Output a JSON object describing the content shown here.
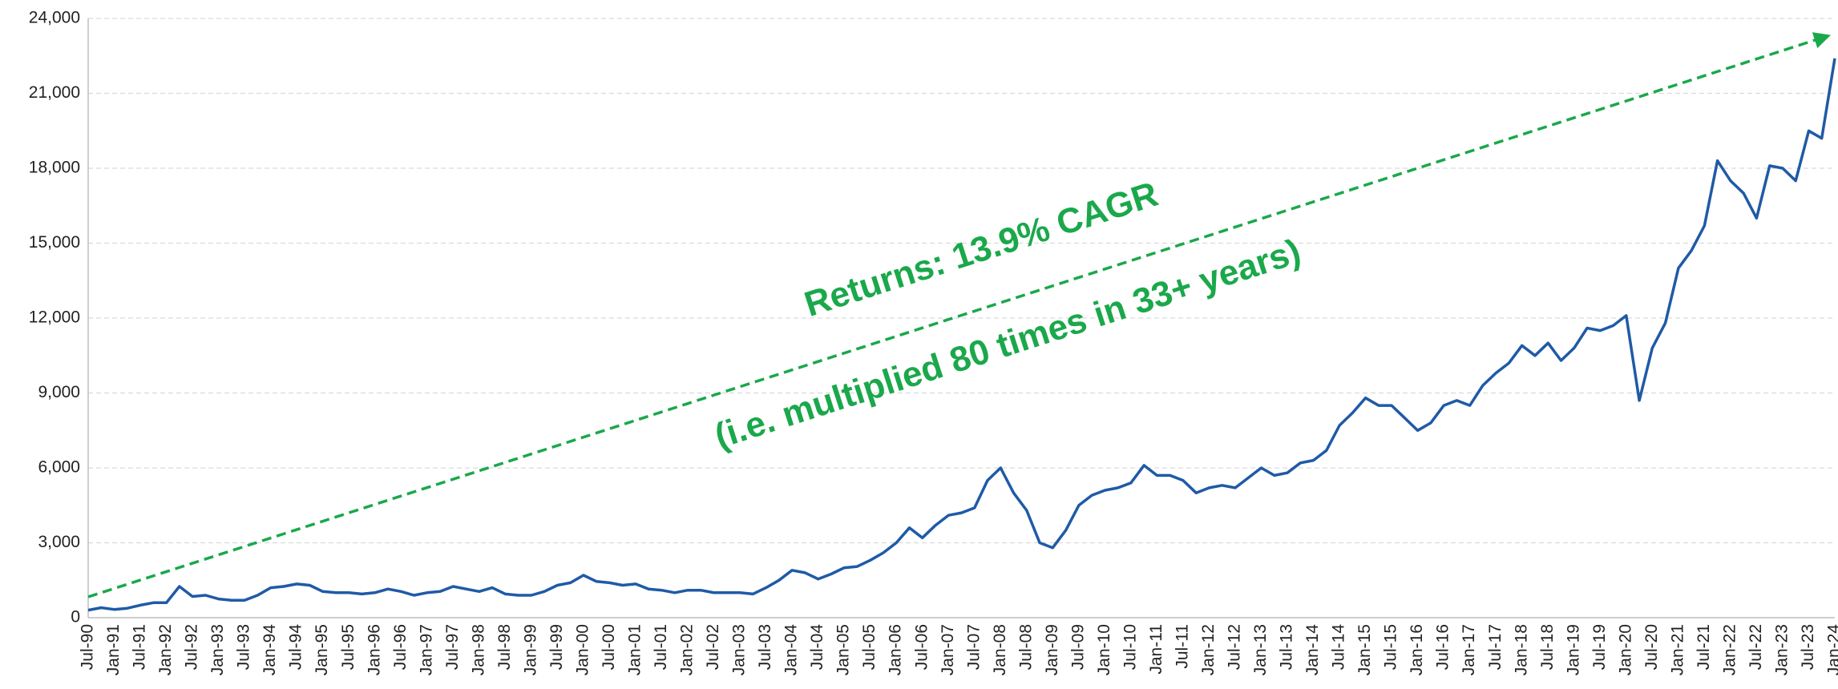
{
  "chart_data": {
    "type": "line",
    "categories": [
      "Jul-90",
      null,
      "Jan-91",
      null,
      "Jul-91",
      null,
      "Jan-92",
      null,
      "Jul-92",
      null,
      "Jan-93",
      null,
      "Jul-93",
      null,
      "Jan-94",
      null,
      "Jul-94",
      null,
      "Jan-95",
      null,
      "Jul-95",
      null,
      "Jan-96",
      null,
      "Jul-96",
      null,
      "Jan-97",
      null,
      "Jul-97",
      null,
      "Jan-98",
      null,
      "Jul-98",
      null,
      "Jan-99",
      null,
      "Jul-99",
      null,
      "Jan-00",
      null,
      "Jul-00",
      null,
      "Jan-01",
      null,
      "Jul-01",
      null,
      "Jan-02",
      null,
      "Jul-02",
      null,
      "Jan-03",
      null,
      "Jul-03",
      null,
      "Jan-04",
      null,
      "Jul-04",
      null,
      "Jan-05",
      null,
      "Jul-05",
      null,
      "Jan-06",
      null,
      "Jul-06",
      null,
      "Jan-07",
      null,
      "Jul-07",
      null,
      "Jan-08",
      null,
      "Jul-08",
      null,
      "Jan-09",
      null,
      "Jul-09",
      null,
      "Jan-10",
      null,
      "Jul-10",
      null,
      "Jan-11",
      null,
      "Jul-11",
      null,
      "Jan-12",
      null,
      "Jul-12",
      null,
      "Jan-13",
      null,
      "Jul-13",
      null,
      "Jan-14",
      null,
      "Jul-14",
      null,
      "Jan-15",
      null,
      "Jul-15",
      null,
      "Jan-16",
      null,
      "Jul-16",
      null,
      "Jan-17",
      null,
      "Jul-17",
      null,
      "Jan-18",
      null,
      "Jul-18",
      null,
      "Jan-19",
      null,
      "Jul-19",
      null,
      "Jan-20",
      null,
      "Jul-20",
      null,
      "Jan-21",
      null,
      "Jul-21",
      null,
      "Jan-22",
      null,
      "Jul-22",
      null,
      "Jan-23",
      null,
      "Jul-23",
      null,
      "Jan-24"
    ],
    "values": [
      300,
      400,
      330,
      380,
      500,
      600,
      600,
      1250,
      850,
      900,
      750,
      700,
      700,
      900,
      1200,
      1250,
      1350,
      1300,
      1050,
      1000,
      1000,
      950,
      1000,
      1150,
      1050,
      900,
      1000,
      1050,
      1250,
      1150,
      1050,
      1200,
      950,
      900,
      900,
      1050,
      1300,
      1400,
      1700,
      1450,
      1400,
      1300,
      1350,
      1150,
      1100,
      1000,
      1100,
      1100,
      1000,
      1000,
      1000,
      950,
      1200,
      1500,
      1900,
      1800,
      1550,
      1750,
      2000,
      2050,
      2300,
      2600,
      3000,
      3600,
      3200,
      3700,
      4100,
      4200,
      4400,
      5500,
      6000,
      5000,
      4300,
      3000,
      2800,
      3500,
      4500,
      4900,
      5100,
      5200,
      5400,
      6100,
      5700,
      5700,
      5500,
      5000,
      5200,
      5300,
      5200,
      5600,
      6000,
      5700,
      5800,
      6200,
      6300,
      6700,
      7700,
      8200,
      8800,
      8500,
      8500,
      8000,
      7500,
      7800,
      8500,
      8700,
      8500,
      9300,
      9800,
      10200,
      10900,
      10500,
      11000,
      10300,
      10800,
      11600,
      11500,
      11700,
      12100,
      8700,
      10800,
      11800,
      14000,
      14700,
      15700,
      18300,
      17500,
      17000,
      16000,
      18100,
      18000,
      17500,
      19500,
      19200,
      22400
    ],
    "color": "#1f5aa6",
    "ylim": [
      0,
      24000
    ],
    "yticks": [
      0,
      {
        "value": 3000,
        "label": "3,000"
      },
      {
        "value": 6000,
        "label": "6,000"
      },
      {
        "value": 9000,
        "label": "9,000"
      },
      {
        "value": 12000,
        "label": "12,000"
      },
      {
        "value": 15000,
        "label": "15,000"
      },
      {
        "value": 18000,
        "label": "18,000"
      },
      {
        "value": 21000,
        "label": "21,000"
      },
      {
        "value": 24000,
        "label": "24,000"
      }
    ],
    "grid": true,
    "annotations": [
      "Returns: 13.9% CAGR",
      "(i.e. multiplied 80 times in 33+ years)"
    ],
    "annotation_color": "#1aa84b"
  }
}
